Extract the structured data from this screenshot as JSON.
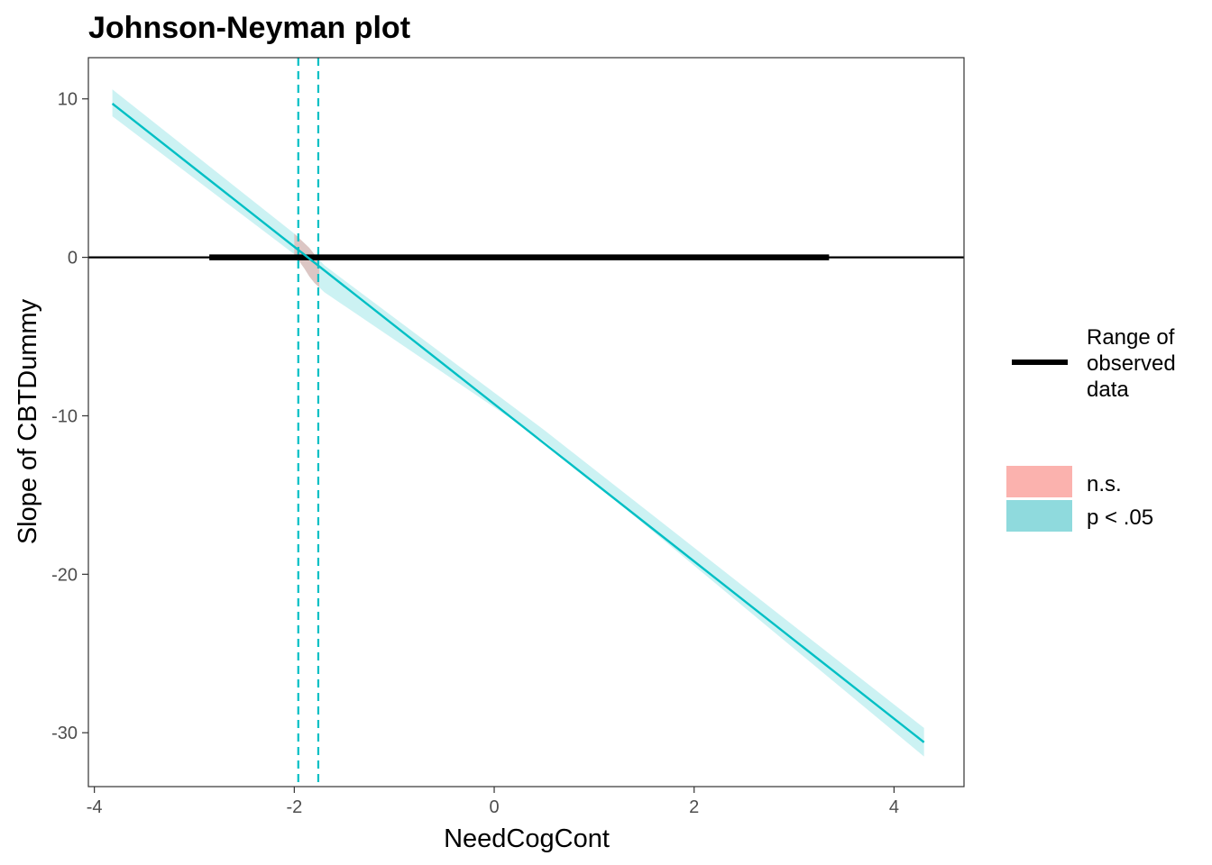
{
  "chart_data": {
    "type": "line",
    "title": "Johnson-Neyman plot",
    "xlabel": "NeedCogCont",
    "ylabel": "Slope of CBTDummy",
    "xlim": [
      -4.06,
      4.7
    ],
    "ylim": [
      -33.4,
      12.6
    ],
    "x_ticks": [
      -4,
      -2,
      0,
      2,
      4
    ],
    "y_ticks": [
      10,
      0,
      -10,
      -20,
      -30
    ],
    "x_tick_labels": [
      "-4",
      "-2",
      "0",
      "2",
      "4"
    ],
    "y_tick_labels": [
      "10",
      "0",
      "-10",
      "-20",
      "-30"
    ],
    "grid": false,
    "slope_line": {
      "x": [
        -3.82,
        4.3
      ],
      "y": [
        9.7,
        -30.6
      ],
      "color": "#00BFC4"
    },
    "confidence_band": {
      "x": [
        -3.82,
        -2.0,
        -1.9,
        -1.85,
        -1.8,
        -1.75,
        -1.7,
        0.5,
        4.3
      ],
      "lower": [
        8.9,
        0.2,
        -0.7,
        -1.2,
        -1.6,
        -1.9,
        -2.2,
        -11.6,
        -31.5
      ],
      "upper": [
        10.6,
        1.5,
        0.9,
        0.6,
        0.2,
        -0.15,
        -0.5,
        -10.9,
        -29.7
      ]
    },
    "ns_region": [
      -1.96,
      -1.76
    ],
    "jn_boundaries": [
      -1.96,
      -1.76
    ],
    "observed_range": [
      -2.85,
      3.35
    ],
    "zero_line_y": 0,
    "colors": {
      "significant": "#00BFC4",
      "significant_fill": "#8FDADD",
      "ns_fill": "#F8766D",
      "ns_legend_fill": "#FBB2AE",
      "range_line": "#000000"
    },
    "legend": {
      "range_label_lines": [
        "Range of",
        "observed",
        "data"
      ],
      "fill_items": [
        {
          "label": "n.s.",
          "color": "#FBB2AE"
        },
        {
          "label": "p < .05",
          "color": "#8FDADD"
        }
      ],
      "position": "right"
    }
  }
}
